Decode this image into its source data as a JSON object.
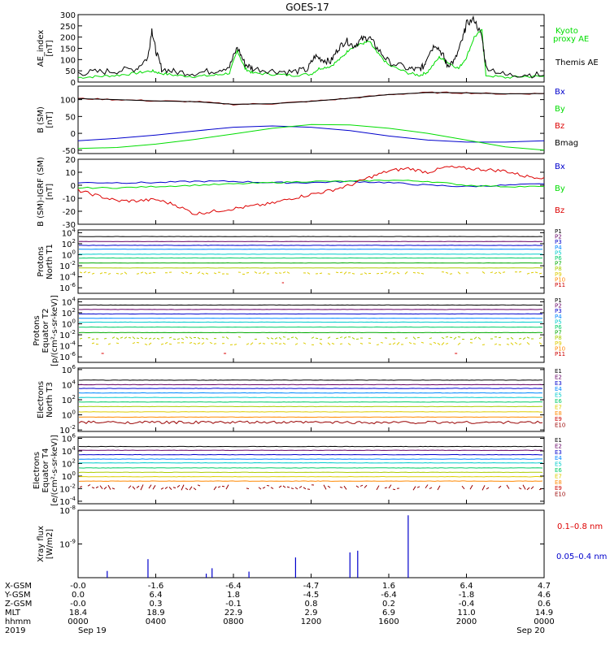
{
  "title": "GOES-17",
  "colors": {
    "black": "#000000",
    "green": "#00dd00",
    "blue": "#0000cc",
    "red": "#dd0000",
    "darkred": "#990000",
    "p": [
      "#000000",
      "#660066",
      "#0000cc",
      "#0088ff",
      "#00cccc",
      "#00cc66",
      "#00aa00",
      "#aacc00",
      "#ddcc00",
      "#ff8800",
      "#cc0000"
    ]
  },
  "panels": {
    "ae": {
      "ylabel": "AE_index\n[nT]",
      "ticks": [
        "300",
        "250",
        "200",
        "150",
        "100",
        "50",
        "0"
      ],
      "ylim": [
        0,
        300
      ],
      "legend": [
        "Kyoto",
        "proxy AE",
        "Themis AE"
      ]
    },
    "bsm": {
      "ylabel": "B (SM)\n[nT]",
      "ticks": [
        "100",
        "50",
        "0",
        "-50"
      ],
      "ylim": [
        -60,
        140
      ],
      "legend": [
        "Bx",
        "By",
        "Bz",
        "Bmag"
      ]
    },
    "bdiff": {
      "ylabel": "B (SM)-IGRF (SM)\n[nT]",
      "ticks": [
        "20",
        "10",
        "0",
        "-10",
        "-20",
        "-30"
      ],
      "ylim": [
        -30,
        20
      ],
      "legend": [
        "Bx",
        "By",
        "Bz"
      ]
    },
    "p_t1": {
      "ylabel": "Protons\nNorth T1",
      "exps": [
        "4",
        "2",
        "0",
        "-2",
        "-4",
        "-6"
      ],
      "legend": [
        "P1",
        "P2",
        "P3",
        "P4",
        "P5",
        "P6",
        "P7",
        "P8",
        "P9",
        "P10",
        "P11"
      ]
    },
    "p_t2": {
      "ylabel": "Protons\nEquator T2\n[p/(cm²-s-sr-keV)]",
      "exps": [
        "4",
        "2",
        "0",
        "-2",
        "-4",
        "-6"
      ],
      "legend": [
        "P1",
        "P2",
        "P3",
        "P4",
        "P5",
        "P6",
        "P7",
        "P8",
        "P9",
        "P10",
        "P11"
      ]
    },
    "e_t3": {
      "ylabel": "Electrons\nNorth T3",
      "exps": [
        "6",
        "4",
        "2",
        "0",
        "-2"
      ],
      "legend": [
        "E1",
        "E2",
        "E3",
        "E4",
        "E5",
        "E6",
        "E7",
        "E8",
        "E9",
        "E10"
      ]
    },
    "e_t4": {
      "ylabel": "Electrons\nEquator T4\n[e/(cm²-s-sr-keV)]",
      "exps": [
        "6",
        "4",
        "2",
        "0",
        "-2",
        "-4"
      ],
      "legend": [
        "E1",
        "E2",
        "E3",
        "E4",
        "E5",
        "E6",
        "E7",
        "E8",
        "E9",
        "E10"
      ]
    },
    "xray": {
      "ylabel": "Xray flux\n[W/m2]",
      "exps": [
        "-8",
        "-9"
      ],
      "legend": [
        "0.1–0.8 nm",
        "0.05–0.4 nm"
      ]
    }
  },
  "xaxis": {
    "row_labels": [
      "X-GSM",
      "Y-GSM",
      "Z-GSM",
      "MLT",
      "hhmm",
      "2019"
    ],
    "columns": [
      [
        "-0.0",
        "0.0",
        "-0.0",
        "18.4",
        "0000",
        "Sep 19"
      ],
      [
        "-1.6",
        "6.4",
        "0.3",
        "18.9",
        "0400",
        ""
      ],
      [
        "-6.4",
        "1.8",
        "-0.1",
        "22.9",
        "0800",
        ""
      ],
      [
        "-4.7",
        "-4.5",
        "0.8",
        "2.9",
        "1200",
        ""
      ],
      [
        "1.6",
        "-6.4",
        "0.2",
        "6.9",
        "1600",
        ""
      ],
      [
        "6.4",
        "-1.8",
        "-0.4",
        "11.0",
        "2000",
        ""
      ],
      [
        "4.7",
        "4.6",
        "0.6",
        "14.9",
        "0000",
        "Sep 20"
      ]
    ]
  },
  "chart_data": {
    "type": "line",
    "title": "GOES-17",
    "x_hours": [
      0,
      24
    ],
    "ae_themis": {
      "x": [
        0,
        1,
        2,
        3,
        3.6,
        3.8,
        4,
        4.3,
        5,
        6,
        7,
        7.8,
        8.2,
        8.6,
        9,
        10,
        11,
        11.8,
        12.2,
        12.6,
        13,
        13.4,
        13.8,
        14.2,
        14.6,
        15,
        15.4,
        16,
        17,
        17.5,
        17.8,
        18,
        18.4,
        18.8,
        19,
        19.4,
        19.8,
        20,
        20.4,
        20.8,
        21,
        22,
        23,
        24
      ],
      "y": [
        40,
        45,
        50,
        60,
        110,
        235,
        140,
        60,
        45,
        40,
        50,
        70,
        155,
        80,
        60,
        50,
        45,
        55,
        115,
        100,
        90,
        150,
        185,
        160,
        190,
        200,
        150,
        90,
        60,
        55,
        70,
        120,
        170,
        120,
        75,
        95,
        190,
        260,
        280,
        200,
        70,
        30,
        35,
        30
      ]
    },
    "ae_kyoto": {
      "x": [
        0,
        1,
        2,
        3,
        3.8,
        4.2,
        5,
        6,
        7,
        7.8,
        8.2,
        8.6,
        9,
        10,
        11,
        12,
        12.4,
        13,
        13.6,
        14,
        14.6,
        15,
        15.4,
        16,
        17,
        17.6,
        18,
        18.6,
        19,
        19.6,
        20,
        20.4,
        20.8,
        21,
        22,
        23,
        24
      ],
      "y": [
        20,
        25,
        30,
        40,
        50,
        40,
        30,
        25,
        30,
        40,
        140,
        60,
        40,
        35,
        30,
        35,
        60,
        70,
        110,
        150,
        170,
        180,
        130,
        75,
        40,
        30,
        45,
        110,
        90,
        60,
        110,
        200,
        230,
        30,
        20,
        25,
        25
      ]
    },
    "b_sm": {
      "Bz": {
        "x": [
          0,
          2,
          4,
          6,
          8,
          10,
          12,
          14,
          16,
          18,
          20,
          22,
          24
        ],
        "y": [
          103,
          100,
          96,
          94,
          86,
          88,
          95,
          104,
          115,
          121,
          120,
          117,
          118
        ]
      },
      "Bx": {
        "x": [
          0,
          2,
          4,
          6,
          8,
          10,
          12,
          14,
          16,
          18,
          20,
          22,
          24
        ],
        "y": [
          -22,
          -15,
          -5,
          7,
          18,
          22,
          18,
          8,
          -8,
          -20,
          -26,
          -26,
          -22
        ]
      },
      "By": {
        "x": [
          0,
          2,
          4,
          6,
          8,
          10,
          12,
          14,
          16,
          18,
          20,
          22,
          24
        ],
        "y": [
          -45,
          -42,
          -32,
          -18,
          -2,
          15,
          26,
          25,
          15,
          0,
          -20,
          -40,
          -50
        ]
      }
    },
    "b_diff": {
      "Bx": {
        "x": [
          0,
          2,
          4,
          6,
          8,
          10,
          12,
          14,
          16,
          18,
          20,
          22,
          24
        ],
        "y": [
          2,
          2,
          2,
          3,
          3,
          2,
          2,
          3,
          2,
          0,
          -1,
          0,
          1
        ]
      },
      "By": {
        "x": [
          0,
          2,
          4,
          6,
          8,
          10,
          12,
          14,
          16,
          18,
          20,
          22,
          24
        ],
        "y": [
          -2,
          -2,
          -1,
          0,
          1,
          2,
          3,
          3,
          4,
          3,
          0,
          -1,
          -1
        ]
      },
      "Bz": {
        "x": [
          0,
          1,
          2,
          3,
          4,
          5,
          6,
          7,
          8,
          9,
          10,
          11,
          12,
          13,
          14,
          15,
          16,
          17,
          18,
          19,
          20,
          21,
          22,
          23,
          24
        ],
        "y": [
          -4,
          -8,
          -12,
          -12,
          -11,
          -15,
          -22,
          -20,
          -18,
          -16,
          -14,
          -10,
          -7,
          -4,
          0,
          6,
          11,
          13,
          10,
          14,
          13,
          12,
          11,
          7,
          6
        ]
      }
    },
    "proton_levels_t1": [
      3.3,
      2.4,
      1.7,
      1.0,
      0.1,
      -0.6,
      -1.5,
      -2.4,
      -3.3
    ],
    "proton_levels_t2": [
      3.4,
      2.6,
      1.8,
      1.0,
      0.3,
      -0.6,
      -1.6,
      -2.6,
      -3.6
    ],
    "electron_levels_t3": [
      4.6,
      4.0,
      3.5,
      2.9,
      2.3,
      1.7,
      1.1,
      0.4,
      -0.3,
      -1.0
    ],
    "electron_levels_t4": [
      4.7,
      4.1,
      3.4,
      2.7,
      2.1,
      1.3,
      0.6,
      -0.1,
      -0.8,
      -1.8
    ],
    "xray_short_spikes": {
      "x": [
        1.5,
        3.6,
        6.6,
        6.9,
        8.8,
        11.2,
        14.0,
        14.4,
        17.0
      ],
      "y": [
        -9.8,
        -9.45,
        -9.88,
        -9.72,
        -9.82,
        -9.4,
        -9.25,
        -9.2,
        -8.15
      ]
    }
  }
}
